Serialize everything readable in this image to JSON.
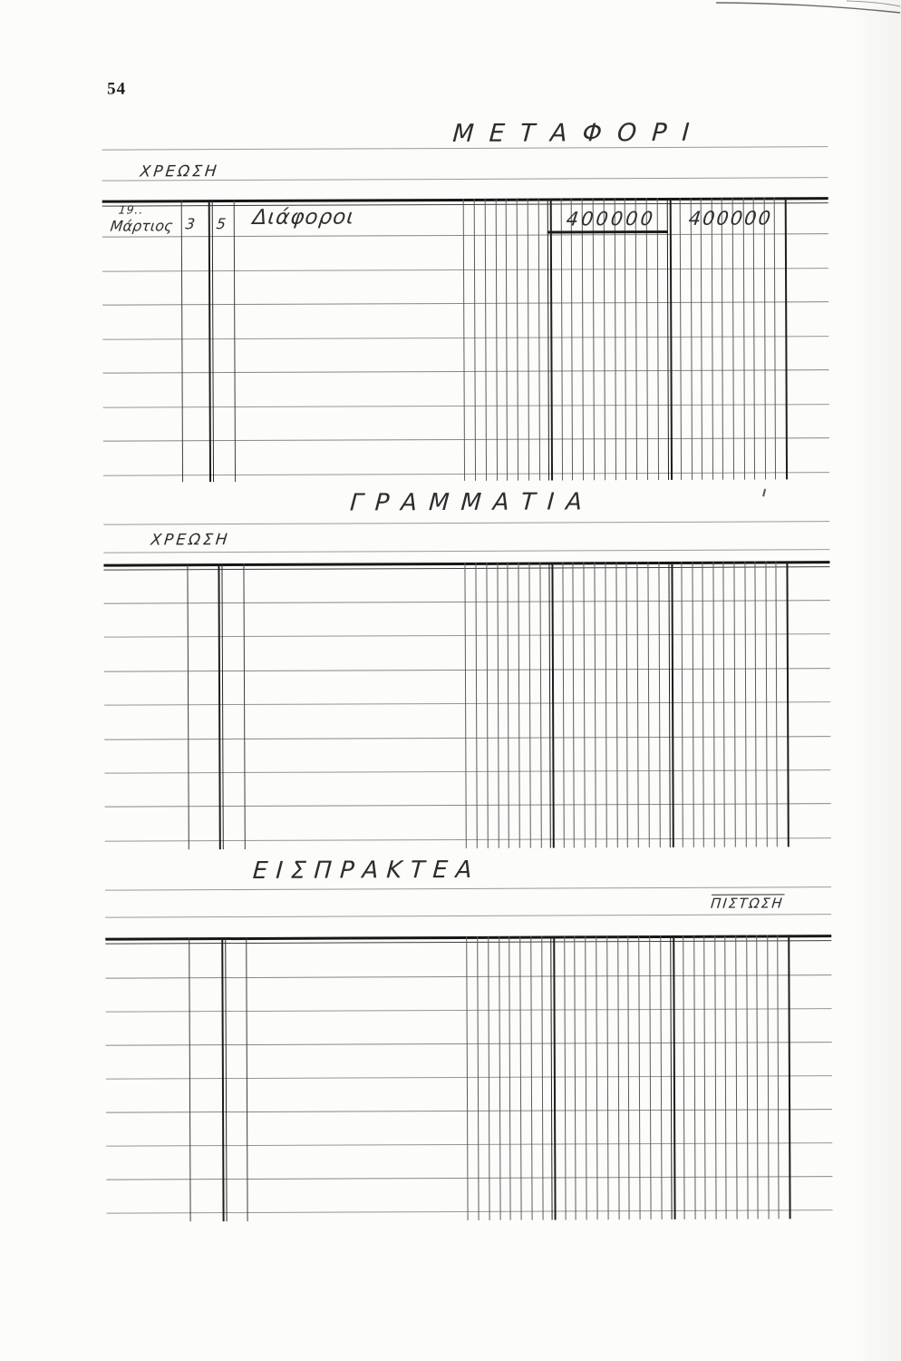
{
  "page_number": "54",
  "sections": [
    {
      "id": "metafori",
      "title": "ΜΕΤΑΦΟΡΙ",
      "side_label": "ΧΡΕΩΣΗ",
      "side_label_position": "left",
      "table": {
        "rows": 8,
        "entries": [
          {
            "year": "19..",
            "month": "Μάρτιος",
            "day": "3",
            "folio": "5",
            "description": "Διάφοροι",
            "debit": "400000",
            "credit": "400000"
          }
        ]
      }
    },
    {
      "id": "grammatia",
      "title": "ΓΡΑΜΜΑΤΙΑ",
      "side_label": "ΧΡΕΩΣΗ",
      "side_label_position": "left",
      "table": {
        "rows": 8,
        "entries": []
      }
    },
    {
      "id": "eispraktea",
      "title": "ΕΙΣΠΡΑΚΤΕΑ",
      "side_label": "ΠΙΣΤΩΣΗ",
      "side_label_position": "right",
      "table": {
        "rows": 8,
        "entries": []
      }
    }
  ]
}
